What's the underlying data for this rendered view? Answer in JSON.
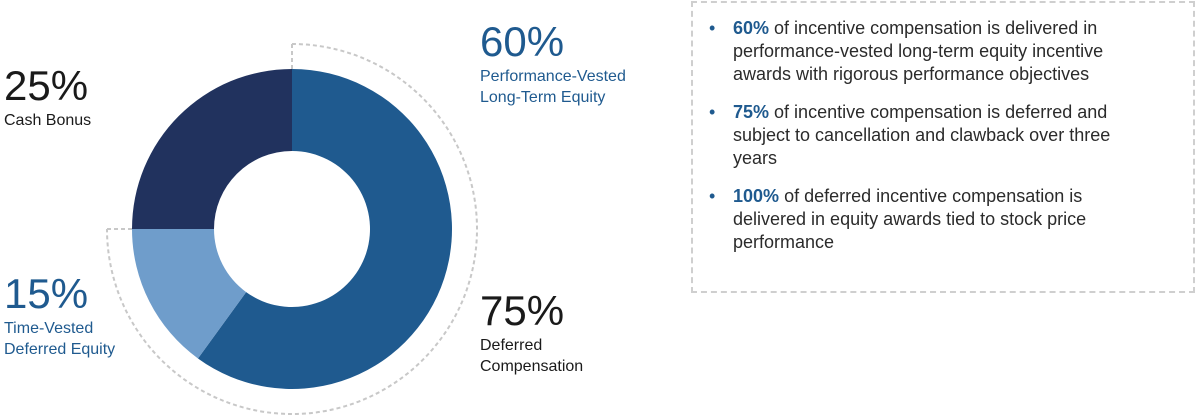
{
  "chart_data": {
    "type": "donut",
    "categories": [
      [
        "Performance-Vested",
        "Long-Term Equity"
      ],
      [
        "Time-Vested",
        "Deferred Equity"
      ],
      [
        "Cash Bonus"
      ]
    ],
    "values": [
      60,
      15,
      25
    ],
    "value_labels": [
      "60%",
      "15%",
      "25%"
    ],
    "colors": [
      "#1f5a8f",
      "#6f9dcb",
      "#21325e"
    ],
    "label_colors": [
      "#1f5a8f",
      "#1f5a8f",
      "#1a1a1a"
    ],
    "annotation": {
      "value": 75,
      "value_label": "75%",
      "lines": [
        "Deferred",
        "Compensation"
      ]
    }
  },
  "bullets": [
    {
      "bold": "60%",
      "text": "of incentive compensation is delivered in performance-vested long-term equity incentive awards with rigorous performance objectives"
    },
    {
      "bold": "75%",
      "text": "of incentive compensation is deferred and subject to cancellation and clawback over three years"
    },
    {
      "bold": "100%",
      "text": "of deferred incentive compensation is delivered in equity awards tied to stock price performance"
    }
  ]
}
